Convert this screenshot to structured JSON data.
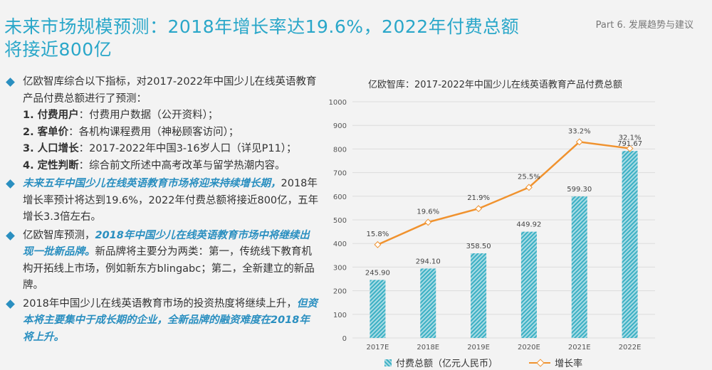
{
  "header": {
    "title": "未来市场规模预测：2018年增长率达19.6%，2022年付费总额将接近800亿",
    "part": "Part 6. 发展趋势与建议"
  },
  "left_panel": {
    "b1_intro": "亿欧智库综合以下指标，对2017-2022年中国少儿在线英语教育产品付费总额进行了预测：",
    "b1_items": [
      {
        "num": "1. ",
        "key": "付费用户",
        "text": "：付费用户数据（公开资料）；"
      },
      {
        "num": "2. ",
        "key": "客单价",
        "text": "：各机构课程费用（神秘顾客访问）；"
      },
      {
        "num": "3. ",
        "key": "人口增长",
        "text": "：2017-2022年中国3-16岁人口（详见P11）；"
      },
      {
        "num": "4. ",
        "key": "定性判断",
        "text": "：综合前文所述中高考改革与留学热潮内容。"
      }
    ],
    "b2_hl": "未来五年中国少儿在线英语教育市场将迎来持续增长期，",
    "b2_text": "2018年增长率预计将达到19.6%，2022年付费总额将接近800亿，五年增长3.3倍左右。",
    "b3_pre": "亿欧智库预测，",
    "b3_hl": "2018年中国少儿在线英语教育市场中将继续出现一批新品牌。",
    "b3_text": "新品牌将主要分为两类：第一，传统线下教育机构开拓线上市场，例如新东方blingabc；第二，全新建立的新品牌。",
    "b4_text": "2018年中国少儿在线英语教育市场的投资热度将继续上升，",
    "b4_hl": "但资本将主要集中于成长期的企业，全新品牌的融资难度在2018年将上升。"
  },
  "chart_data": {
    "type": "bar",
    "title": "亿欧智库：2017-2022年中国少儿在线英语教育产品付费总额",
    "categories": [
      "2017E",
      "2018E",
      "2019E",
      "2020E",
      "2021E",
      "2022E"
    ],
    "series": [
      {
        "name": "付费总额（亿元人民币）",
        "type": "bar",
        "values": [
          245.9,
          294.1,
          358.5,
          449.92,
          599.3,
          791.67
        ],
        "labels": [
          "245.90",
          "294.10",
          "358.50",
          "449.92",
          "599.30",
          "791.67"
        ]
      },
      {
        "name": "增长率",
        "type": "line",
        "values": [
          15.8,
          19.6,
          21.9,
          25.5,
          33.2,
          32.1
        ],
        "labels": [
          "15.8%",
          "19.6%",
          "21.9%",
          "25.5%",
          "33.2%",
          "32.1%"
        ]
      }
    ],
    "yticks": [
      "0",
      "100",
      "200",
      "300",
      "400",
      "500",
      "600",
      "700",
      "800",
      "900",
      "1000"
    ],
    "ylim": [
      0,
      1000
    ],
    "grid": true,
    "legend": "bottom",
    "colors": {
      "bar": "#3bb0c4",
      "line": "#f0922e"
    }
  }
}
